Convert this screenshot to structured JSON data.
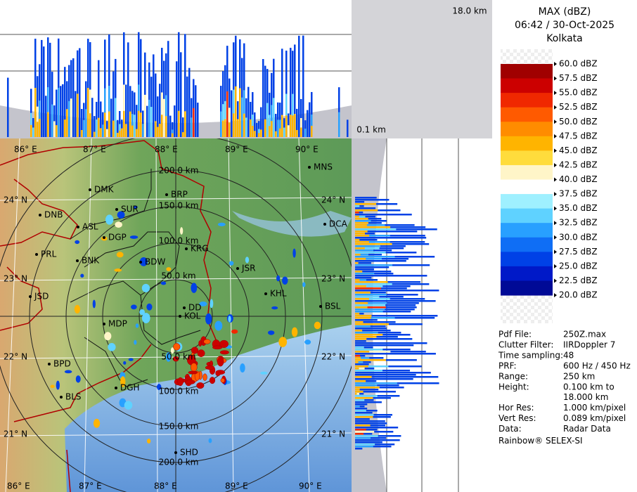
{
  "top_panel": {
    "height_label": "18.0 km"
  },
  "side_panel": {
    "height_label": "0.1 km"
  },
  "header": {
    "product": "MAX (dBZ)",
    "datetime": "06:42 / 30-Oct-2025",
    "site": "Kolkata"
  },
  "legend": {
    "labels": [
      "60.0 dBZ",
      "57.5 dBZ",
      "55.0 dBZ",
      "52.5 dBZ",
      "50.0 dBZ",
      "47.5 dBZ",
      "45.0 dBZ",
      "42.5 dBZ",
      "40.0 dBZ",
      "37.5 dBZ",
      "35.0 dBZ",
      "32.5 dBZ",
      "30.0 dBZ",
      "27.5 dBZ",
      "25.0 dBZ",
      "22.5 dBZ",
      "20.0 dBZ"
    ],
    "colors": [
      "#ffffff",
      "#a00000",
      "#cc0000",
      "#f02800",
      "#ff5a00",
      "#ff8c00",
      "#ffb400",
      "#ffdc3c",
      "#fff5c8",
      "#ffffff",
      "#9ff0ff",
      "#5fd2ff",
      "#28a0ff",
      "#0f6ef5",
      "#0041e6",
      "#0019c8",
      "#000a96"
    ]
  },
  "info": {
    "rows": [
      {
        "label": "Pdf File:",
        "value": "250Z.max"
      },
      {
        "label": "Clutter Filter:",
        "value": "IIRDoppler 7"
      },
      {
        "label": "Time sampling:48"
      },
      {
        "label": "PRF:",
        "value": "600 Hz / 450 Hz"
      },
      {
        "label": "Range:",
        "value": "250 km"
      },
      {
        "label": "Height:",
        "value": "0.100 km to",
        "value_cont": "18.000 km"
      },
      {
        "label": "Hor Res:",
        "value": "1.000 km/pixel"
      },
      {
        "label": "Vert Res:",
        "value": "0.089 km/pixel"
      },
      {
        "label": "Data:",
        "value": "Radar Data"
      }
    ],
    "credit": "Rainbow® SELEX-SI"
  },
  "map": {
    "lon_labels_top": [
      "86° E",
      "87° E",
      "88° E",
      "89° E",
      "90° E"
    ],
    "lon_labels_bottom": [
      "86° E",
      "87° E",
      "88° E",
      "89° E",
      "90° E"
    ],
    "lat_labels_left": [
      "24° N",
      "23° N",
      "22° N",
      "21° N"
    ],
    "lat_labels_right": [
      "24° N",
      "23° N",
      "22° N",
      "21° N"
    ],
    "range_labels_north": [
      "200.0 km",
      "150.0 km",
      "100.0 km",
      "50.0 km"
    ],
    "range_labels_south": [
      "50.0 km",
      "100.0 km",
      "150.0 km",
      "200.0 km"
    ],
    "stations": [
      "MNS",
      "DMK",
      "BRP",
      "SUR",
      "DNB",
      "ASL",
      "DCA",
      "DGP",
      "KRG",
      "PRL",
      "BNK",
      "BDW",
      "JSR",
      "JSD",
      "KHL",
      "BSL",
      "DD",
      "KOL",
      "MDP",
      "BPD",
      "DGH",
      "BLS",
      "SHD"
    ]
  }
}
